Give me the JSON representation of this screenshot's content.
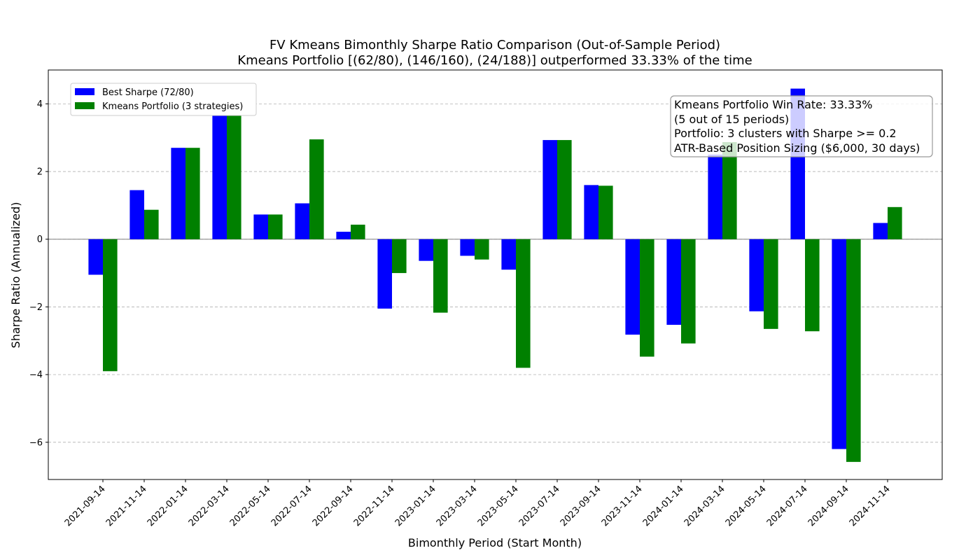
{
  "chart_data": {
    "type": "bar",
    "title": "FV Kmeans Bimonthly Sharpe Ratio Comparison (Out-of-Sample Period)",
    "subtitle": "Kmeans Portfolio [(62/80), (146/160), (24/188)] outperformed 33.33% of the time",
    "xlabel": "Bimonthly Period (Start Month)",
    "ylabel": "Sharpe Ratio (Annualized)",
    "ylim": [
      -7.1,
      5.0
    ],
    "yticks": [
      -6,
      -4,
      -2,
      0,
      2,
      4
    ],
    "ytick_labels": [
      "−6",
      "−4",
      "−2",
      "0",
      "2",
      "4"
    ],
    "grid": "y-dashed",
    "legend_position": "upper-left",
    "categories": [
      "2021-09-14",
      "2021-11-14",
      "2022-01-14",
      "2022-03-14",
      "2022-05-14",
      "2022-07-14",
      "2022-09-14",
      "2022-11-14",
      "2023-01-14",
      "2023-03-14",
      "2023-05-14",
      "2023-07-14",
      "2023-09-14",
      "2023-11-14",
      "2024-01-14",
      "2024-03-14",
      "2024-05-14",
      "2024-07-14",
      "2024-09-14",
      "2024-11-14"
    ],
    "series": [
      {
        "name": "Best Sharpe (72/80)",
        "color": "#0000ff",
        "values": [
          -1.05,
          1.45,
          2.7,
          3.75,
          0.73,
          1.06,
          0.22,
          -2.05,
          -0.64,
          -0.49,
          -0.9,
          2.93,
          1.6,
          -2.82,
          -2.53,
          2.5,
          -2.13,
          4.45,
          -6.2,
          0.48
        ]
      },
      {
        "name": "Kmeans Portfolio (3 strategies)",
        "color": "#008000",
        "values": [
          -3.9,
          0.87,
          2.7,
          3.75,
          0.73,
          2.95,
          0.43,
          -1.0,
          -2.17,
          -0.6,
          -3.8,
          2.93,
          1.58,
          -3.47,
          -3.08,
          2.87,
          -2.65,
          -2.72,
          -6.58,
          0.95
        ]
      }
    ],
    "annotation": {
      "lines": [
        "Kmeans Portfolio Win Rate: 33.33%",
        "(5 out of 15 periods)",
        "Portfolio: 3 clusters with Sharpe >= 0.2",
        "ATR-Based Position Sizing ($6,000, 30 days)"
      ],
      "position": "top-right"
    }
  }
}
